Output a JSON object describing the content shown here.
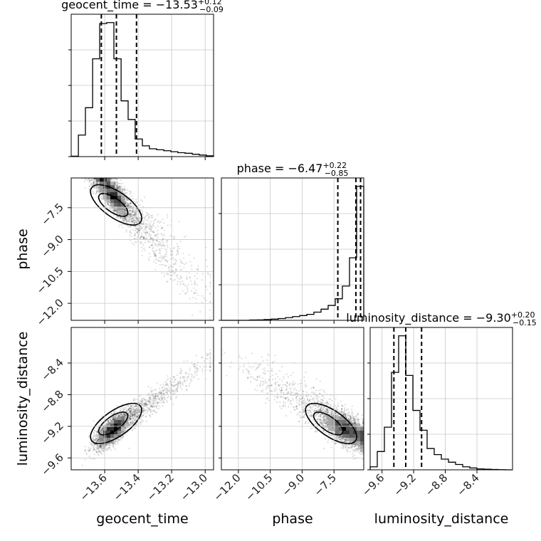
{
  "chart_data": {
    "type": "corner",
    "parameters": [
      "geocent_time",
      "phase",
      "luminosity_distance"
    ],
    "axis_labels": {
      "geocent_time": "geocent_time",
      "phase": "phase",
      "luminosity_distance": "luminosity_distance"
    },
    "titles": [
      {
        "param": "geocent_time",
        "label": "geocent_time",
        "median": "−13.53",
        "plus": "+0.12",
        "minus": "−0.09"
      },
      {
        "param": "phase",
        "label": "phase",
        "median": "−6.47",
        "plus": "+0.22",
        "minus": "−0.85"
      },
      {
        "param": "luminosity_distance",
        "label": "luminosity_distance",
        "median": "−9.30",
        "plus": "+0.20",
        "minus": "−0.15"
      }
    ],
    "ranges": {
      "geocent_time": [
        -13.8,
        -12.95
      ],
      "phase": [
        -12.8,
        -6.1
      ],
      "luminosity_distance": [
        -9.75,
        -7.95
      ]
    },
    "ticks": {
      "geocent_time": [
        -13.6,
        -13.4,
        -13.2,
        -13.0
      ],
      "phase": [
        -12.0,
        -10.5,
        -9.0,
        -7.5
      ],
      "luminosity_distance": [
        -9.6,
        -9.2,
        -8.8,
        -8.4
      ]
    },
    "tick_labels": {
      "geocent_time": [
        "−13.6",
        "−13.4",
        "−13.2",
        "−13.0"
      ],
      "phase": [
        "−12.0",
        "−10.5",
        "−9.0",
        "−7.5"
      ],
      "luminosity_distance": [
        "−9.6",
        "−9.2",
        "−8.8",
        "−8.4"
      ]
    },
    "quantiles": {
      "geocent_time": [
        -13.62,
        -13.53,
        -13.41
      ],
      "phase": [
        -7.32,
        -6.47,
        -6.25
      ],
      "luminosity_distance": [
        -9.45,
        -9.3,
        -9.1
      ]
    },
    "histograms": {
      "geocent_time": {
        "edges": [
          -13.8,
          -13.757,
          -13.715,
          -13.672,
          -13.63,
          -13.588,
          -13.545,
          -13.502,
          -13.46,
          -13.418,
          -13.375,
          -13.333,
          -13.29,
          -13.247,
          -13.205,
          -13.163,
          -13.12,
          -13.077,
          -13.035,
          -12.993,
          -12.95
        ],
        "counts": [
          2,
          110,
          250,
          500,
          680,
          685,
          500,
          285,
          190,
          90,
          55,
          40,
          35,
          30,
          25,
          20,
          17,
          12,
          8,
          4
        ]
      },
      "phase": {
        "edges": [
          -12.8,
          -12.465,
          -12.13,
          -11.795,
          -11.46,
          -11.125,
          -10.79,
          -10.455,
          -10.12,
          -9.785,
          -9.45,
          -9.115,
          -8.78,
          -8.445,
          -8.11,
          -7.775,
          -7.44,
          -7.105,
          -6.77,
          -6.435,
          -6.1
        ],
        "counts": [
          0,
          0,
          0,
          0,
          2,
          3,
          5,
          8,
          12,
          18,
          25,
          32,
          40,
          55,
          75,
          100,
          145,
          230,
          420,
          900
        ]
      },
      "luminosity_distance": {
        "edges": [
          -9.75,
          -9.66,
          -9.57,
          -9.48,
          -9.39,
          -9.3,
          -9.21,
          -9.12,
          -9.03,
          -8.94,
          -8.85,
          -8.76,
          -8.67,
          -8.58,
          -8.49,
          -8.4,
          -8.31,
          -8.22,
          -8.13,
          -8.04,
          -7.95
        ],
        "counts": [
          20,
          120,
          280,
          640,
          880,
          620,
          390,
          260,
          140,
          100,
          70,
          50,
          35,
          20,
          12,
          6,
          4,
          2,
          1,
          0
        ]
      }
    },
    "grid": true
  }
}
